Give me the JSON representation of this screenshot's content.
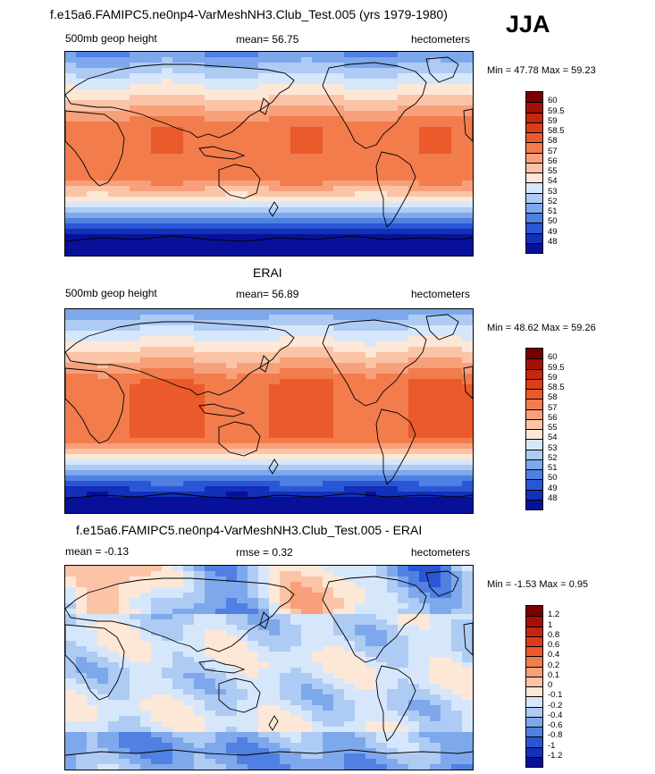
{
  "season": "JJA",
  "panels": [
    {
      "title": "f.e15a6.FAMIPC5.ne0np4-VarMeshNH3.Club_Test.005 (yrs 1979-1980)",
      "left": "500mb geop height",
      "center": "mean=  56.75",
      "right": "hectometers",
      "minmax": "Min =  47.78 Max =  59.23",
      "kind": "model",
      "colorbar": {
        "labels": [
          "60",
          "59.5",
          "59",
          "58.5",
          "58",
          "57",
          "56",
          "55",
          "54",
          "53",
          "52",
          "51",
          "50",
          "49",
          "48"
        ],
        "colors": [
          "#7a0000",
          "#a60f06",
          "#c5260e",
          "#dd3d16",
          "#eb5a2a",
          "#f27c4c",
          "#f7a07a",
          "#fbc4a6",
          "#fde7d6",
          "#d7e7fb",
          "#aecbf4",
          "#7ea8ec",
          "#4f80e2",
          "#2a56d6",
          "#1230b8",
          "#08109a"
        ]
      }
    },
    {
      "title": "ERAI",
      "left": "500mb geop height",
      "center": "mean=  56.89",
      "right": "hectometers",
      "minmax": "Min =  48.62 Max =  59.26",
      "kind": "obs",
      "colorbar": {
        "labels": [
          "60",
          "59.5",
          "59",
          "58.5",
          "58",
          "57",
          "56",
          "55",
          "54",
          "53",
          "52",
          "51",
          "50",
          "49",
          "48"
        ],
        "colors": [
          "#7a0000",
          "#a60f06",
          "#c5260e",
          "#dd3d16",
          "#eb5a2a",
          "#f27c4c",
          "#f7a07a",
          "#fbc4a6",
          "#fde7d6",
          "#d7e7fb",
          "#aecbf4",
          "#7ea8ec",
          "#4f80e2",
          "#2a56d6",
          "#1230b8",
          "#08109a"
        ]
      }
    },
    {
      "title": "f.e15a6.FAMIPC5.ne0np4-VarMeshNH3.Club_Test.005 - ERAI",
      "left": "mean =  -0.13",
      "center": "rmse =   0.32",
      "right": "hectometers",
      "minmax": "Min =  -1.53 Max =   0.95",
      "kind": "diff",
      "colorbar": {
        "labels": [
          "1.2",
          "1",
          "0.8",
          "0.6",
          "0.4",
          "0.2",
          "0.1",
          "0",
          "-0.1",
          "-0.2",
          "-0.4",
          "-0.6",
          "-0.8",
          "-1",
          "-1.2"
        ],
        "colors": [
          "#7a0000",
          "#a60f06",
          "#c5260e",
          "#dd3d16",
          "#eb5a2a",
          "#f27c4c",
          "#f7a07a",
          "#fbc4a6",
          "#fde7d6",
          "#d7e7fb",
          "#aecbf4",
          "#7ea8ec",
          "#4f80e2",
          "#2a56d6",
          "#1230b8",
          "#08109a"
        ]
      }
    }
  ]
}
